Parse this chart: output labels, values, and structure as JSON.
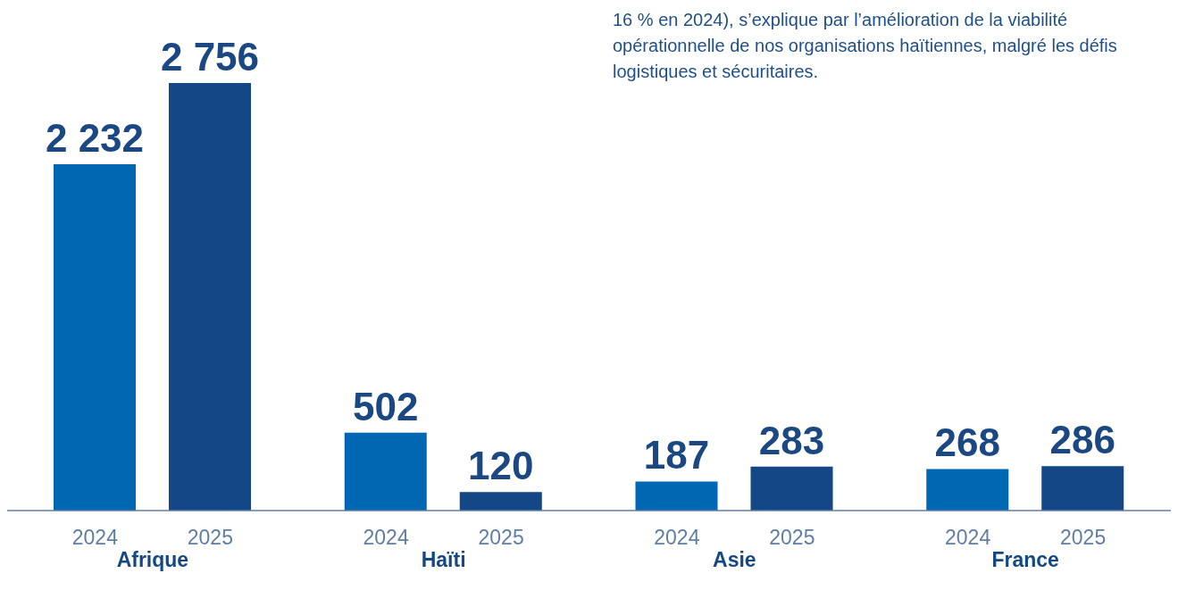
{
  "chart_data": {
    "type": "bar",
    "categories": [
      "Afrique",
      "Haïti",
      "Asie",
      "France"
    ],
    "series": [
      {
        "name": "2024",
        "color": "#0068b3",
        "values": [
          2232,
          502,
          187,
          268
        ],
        "value_labels": [
          "2 232",
          "502",
          "187",
          "268"
        ]
      },
      {
        "name": "2025",
        "color": "#134785",
        "values": [
          2756,
          120,
          283,
          286
        ],
        "value_labels": [
          "2 756",
          "120",
          "283",
          "286"
        ]
      }
    ],
    "annotations": [
      "16 % en 2024), s’explique par l’amélioration de la viabilité opérationnelle de nos organisations haïtiennes, malgré les défis logistiques et sécuritaires."
    ],
    "grid": false,
    "legend": false
  }
}
